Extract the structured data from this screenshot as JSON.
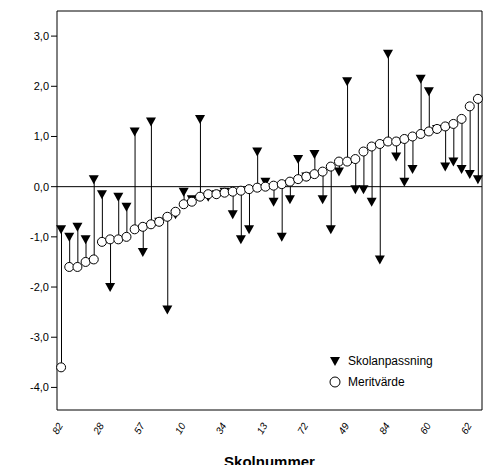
{
  "chart_data": {
    "type": "dot_plot",
    "x_label": "Skolnummer",
    "categories": [
      "82",
      null,
      null,
      null,
      null,
      "28",
      null,
      null,
      null,
      null,
      "57",
      null,
      null,
      null,
      null,
      "10",
      null,
      null,
      null,
      null,
      "34",
      null,
      null,
      null,
      null,
      "13",
      null,
      null,
      null,
      null,
      "72",
      null,
      null,
      null,
      null,
      "49",
      null,
      null,
      null,
      null,
      "84",
      null,
      null,
      null,
      null,
      "60",
      null,
      null,
      null,
      null,
      "62",
      null
    ],
    "series": [
      {
        "name": "Skolanpassning",
        "color": "#000000",
        "marker": "triangle-down",
        "values": [
          -0.85,
          -1.0,
          -0.8,
          -1.05,
          0.15,
          -0.15,
          -2.0,
          -0.2,
          -0.4,
          1.1,
          -1.3,
          1.3,
          -0.7,
          -2.45,
          -0.55,
          -0.1,
          -0.25,
          1.35,
          -0.2,
          -0.15,
          -0.1,
          -0.55,
          -1.05,
          -0.85,
          0.7,
          0.1,
          -0.3,
          -1.0,
          -0.25,
          0.55,
          0.2,
          0.65,
          -0.25,
          -0.85,
          0.3,
          2.1,
          -0.05,
          -0.05,
          -0.3,
          -1.45,
          2.65,
          0.6,
          0.1,
          0.35,
          2.15,
          1.9,
          1.15,
          0.4,
          0.5,
          0.35,
          0.25,
          0.15
        ]
      },
      {
        "name": "Meritvärde",
        "color": "#000000",
        "marker": "circle",
        "values": [
          -3.6,
          -1.6,
          -1.6,
          -1.5,
          -1.45,
          -1.1,
          -1.05,
          -1.05,
          -1.0,
          -0.85,
          -0.8,
          -0.75,
          -0.7,
          -0.6,
          -0.5,
          -0.35,
          -0.3,
          -0.2,
          -0.15,
          -0.15,
          -0.12,
          -0.1,
          -0.08,
          -0.05,
          -0.02,
          0.0,
          0.02,
          0.05,
          0.1,
          0.15,
          0.2,
          0.25,
          0.3,
          0.4,
          0.5,
          0.5,
          0.55,
          0.7,
          0.8,
          0.85,
          0.9,
          0.9,
          0.95,
          1.0,
          1.05,
          1.1,
          1.15,
          1.2,
          1.25,
          1.35,
          1.6,
          1.75
        ]
      }
    ],
    "ylim": [
      -4.45,
      3.5
    ],
    "yticks": [
      {
        "value": -4,
        "label": "-4,0"
      },
      {
        "value": -3,
        "label": "-3,0"
      },
      {
        "value": -2,
        "label": "-2,0"
      },
      {
        "value": -1,
        "label": "-1,0"
      },
      {
        "value": 0,
        "label": "0,0"
      },
      {
        "value": 1,
        "label": "1,0"
      },
      {
        "value": 2,
        "label": "2,0"
      },
      {
        "value": 3,
        "label": "3,0"
      }
    ],
    "reference_line": 0,
    "legend": "lower right",
    "grid": false
  }
}
